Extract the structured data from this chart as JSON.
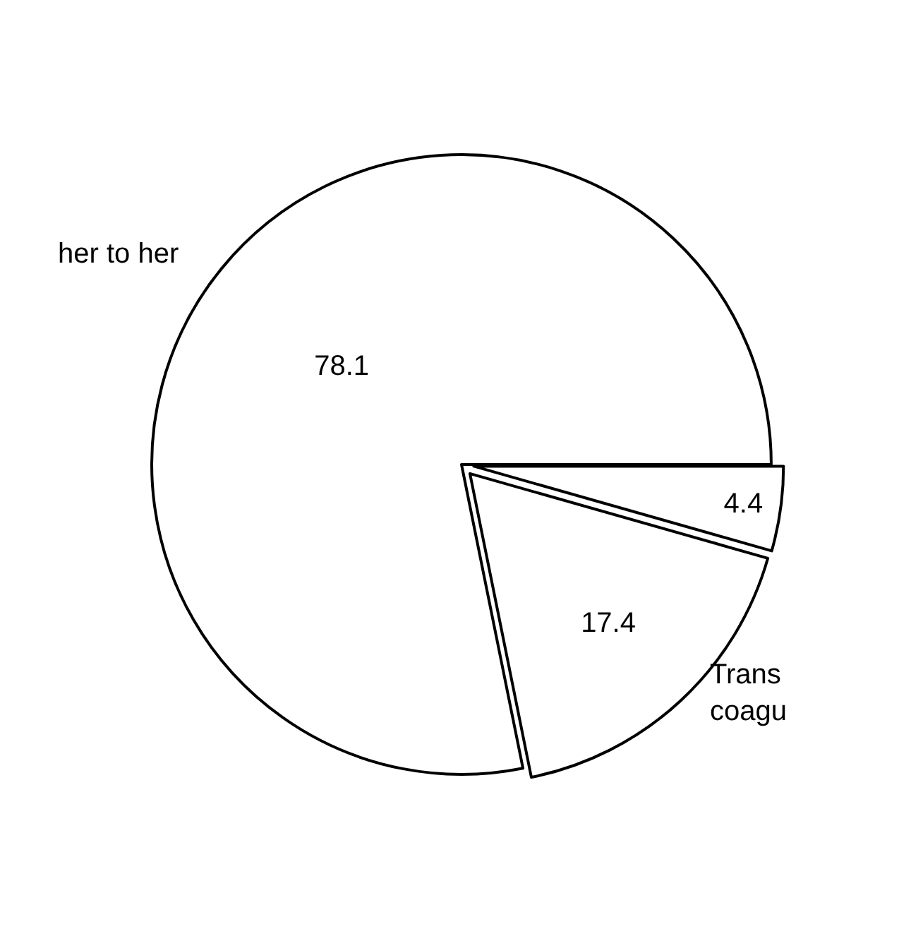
{
  "chart_data": {
    "type": "pie",
    "categories": [
      null,
      "Trans\ncoagu",
      "her to her"
    ],
    "values": [
      4.4,
      17.4,
      78.1
    ],
    "colors": [
      "#ffffff",
      "#ffffff",
      "#ffffff"
    ],
    "data_labels": true,
    "legend": false
  }
}
